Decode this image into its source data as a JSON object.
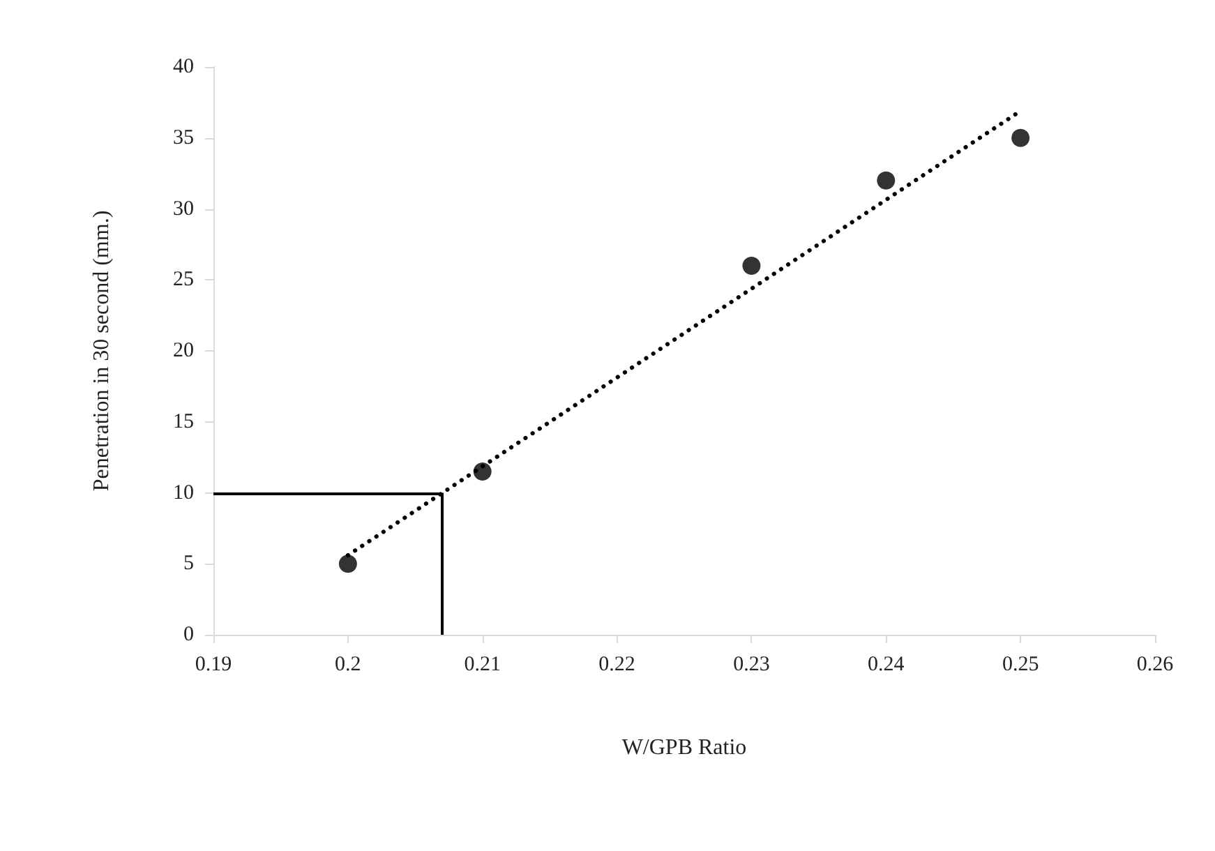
{
  "chart_data": {
    "type": "scatter",
    "xlabel": "W/GPB Ratio",
    "ylabel": "Penetration in 30 second (mm.)",
    "x": [
      0.2,
      0.21,
      0.23,
      0.24,
      0.25
    ],
    "series": [
      {
        "color": "#000000",
        "marker": "circle",
        "values": [
          5,
          11.5,
          26,
          32,
          35
        ]
      },
      {
        "type": "line",
        "color": "#000000",
        "line_style": "dotted",
        "marker": "none",
        "x": [
          0.2,
          0.25
        ],
        "values": [
          5.6,
          36.9
        ]
      }
    ],
    "xlim": [
      0.19,
      0.26
    ],
    "xticks": [
      0.19,
      0.2,
      0.21,
      0.22,
      0.23,
      0.24,
      0.25,
      0.26
    ],
    "ylim": [
      0,
      40
    ],
    "yticks": [
      0,
      5,
      10,
      15,
      20,
      25,
      30,
      35,
      40
    ],
    "ref_lines": [
      {
        "axis": "y",
        "value": 10,
        "color": "#000000"
      },
      {
        "axis": "x",
        "value": 0.207,
        "color": "#000000"
      }
    ],
    "grid": false
  }
}
